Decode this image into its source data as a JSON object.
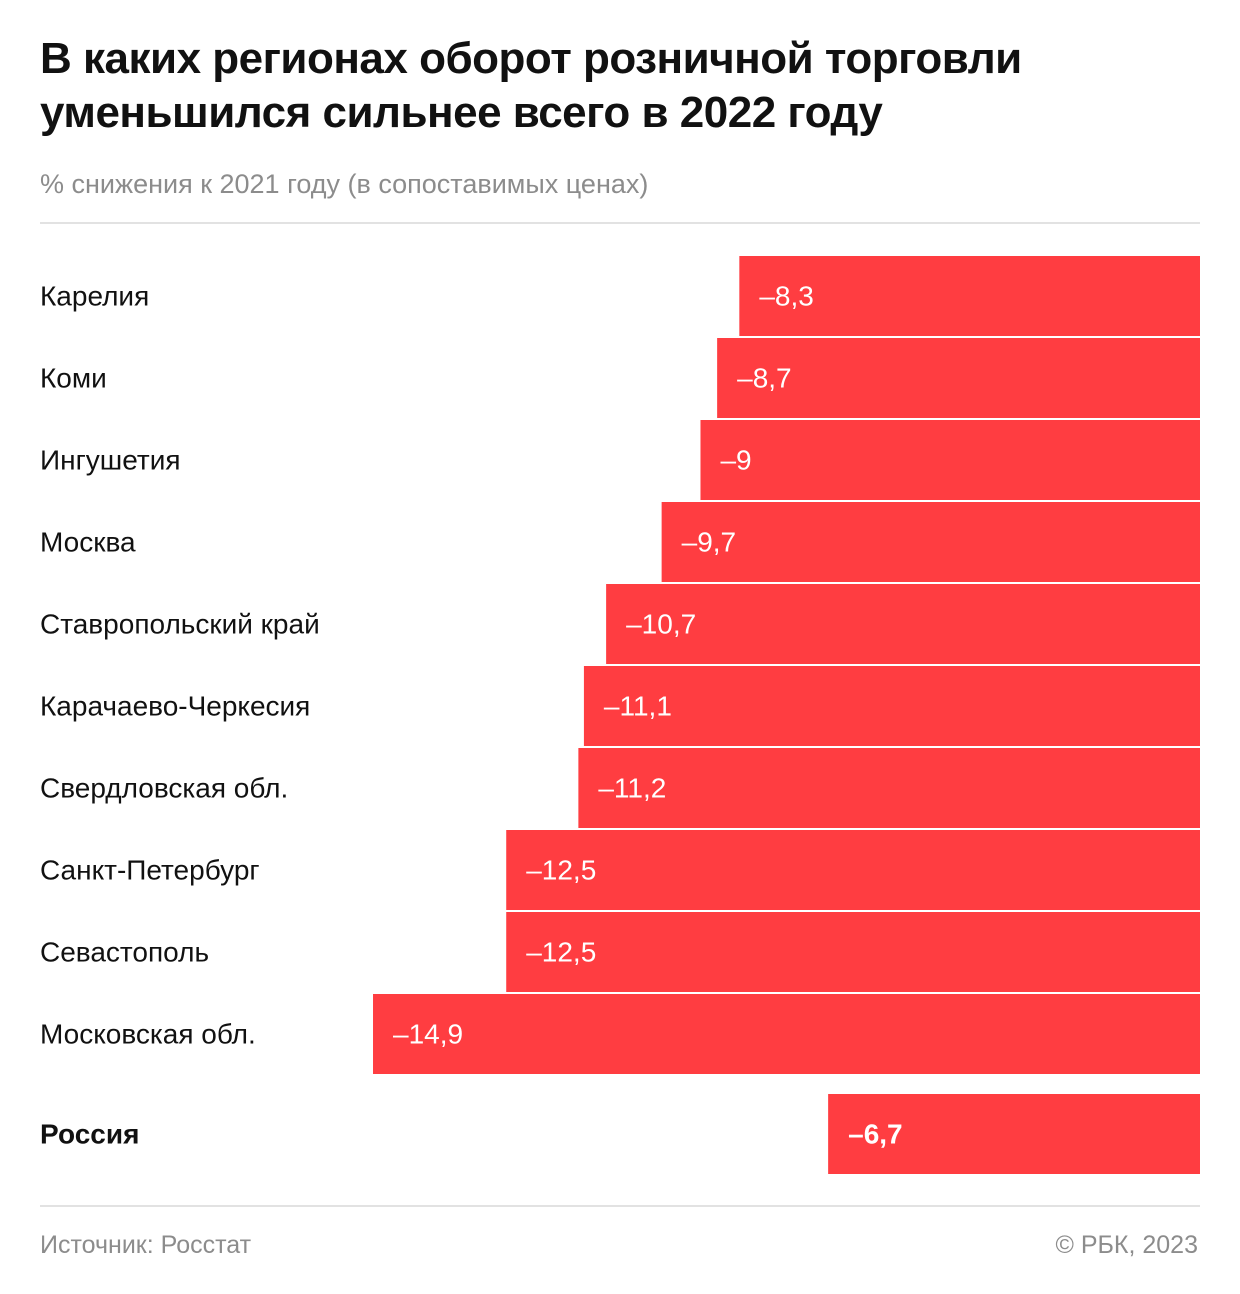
{
  "title": "В каких регионах оборот розничной торговли уменьшился сильнее всего в 2022 году",
  "subtitle": "% снижения к 2021 году (в сопоставимых ценах)",
  "source": "Источник: Росстат",
  "copyright": "© РБК, 2023",
  "colors": {
    "bar": "#ff3d41",
    "divider": "#e2e2e2",
    "muted": "#8c8c8c",
    "text": "#111111"
  },
  "chart_data": {
    "type": "bar",
    "orientation": "horizontal",
    "title": "В каких регионах оборот розничной торговли уменьшился сильнее всего в 2022 году",
    "subtitle": "% снижения к 2021 году (в сопоставимых ценах)",
    "categories": [
      "Карелия",
      "Коми",
      "Ингушетия",
      "Москва",
      "Ставропольский край",
      "Карачаево-Черкесия",
      "Свердловская обл.",
      "Санкт-Петербург",
      "Севастополь",
      "Московская обл."
    ],
    "values": [
      -8.3,
      -8.7,
      -9,
      -9.7,
      -10.7,
      -11.1,
      -11.2,
      -12.5,
      -12.5,
      -14.9
    ],
    "value_labels": [
      "–8,3",
      "–8,7",
      "–9",
      "–9,7",
      "–10,7",
      "–11,1",
      "–11,2",
      "–12,5",
      "–12,5",
      "–14,9"
    ],
    "total": {
      "category": "Россия",
      "value": -6.7,
      "value_label": "–6,7"
    },
    "xlim": [
      -20.9,
      0
    ],
    "grid": false,
    "legend": "none"
  }
}
